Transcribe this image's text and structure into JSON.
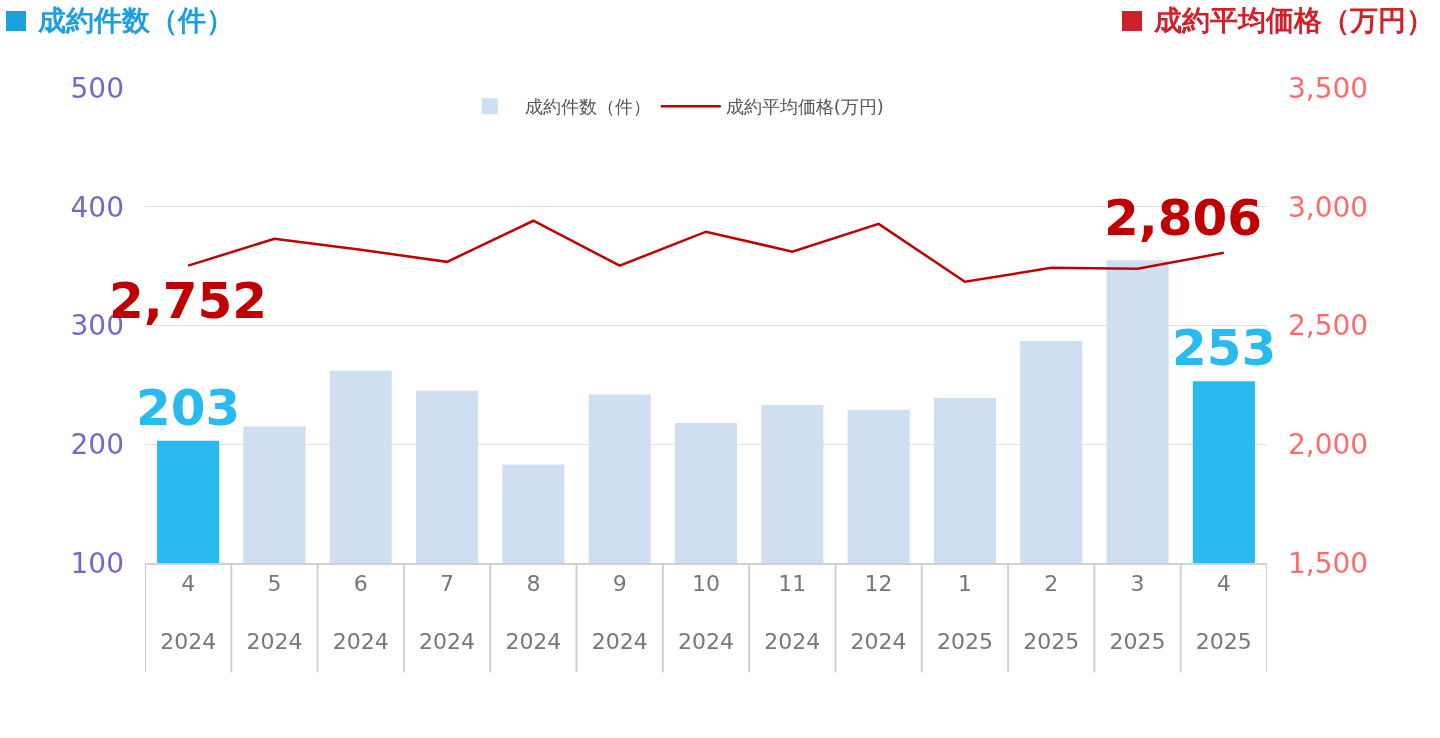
{
  "chart_data": {
    "type": "bar",
    "ylabel": "成約件数（件）",
    "y2label": "成約平均価格（万円）",
    "categories": [
      "4\n2024",
      "5\n2024",
      "6\n2024",
      "7\n2024",
      "8\n2024",
      "9\n2024",
      "10\n2024",
      "11\n2024",
      "12\n2024",
      "1\n2025",
      "2\n2025",
      "3\n2025",
      "4\n2025"
    ],
    "series": [
      {
        "name": "成約件数（件）",
        "color": "#cfdff2",
        "colors": [
          "#29bbef",
          "#cfdff2",
          "#cfdff2",
          "#cfdff2",
          "#cfdff2",
          "#cfdff2",
          "#cfdff2",
          "#cfdff2",
          "#cfdff2",
          "#cfdff2",
          "#cfdff2",
          "#cfdff2",
          "#29bbef"
        ],
        "values": [
          203,
          215,
          262,
          245,
          183,
          242,
          218,
          233,
          229,
          239,
          287,
          355,
          253
        ],
        "value_labels": [
          "203",
          null,
          null,
          null,
          null,
          null,
          null,
          null,
          null,
          null,
          null,
          null,
          "253"
        ]
      },
      {
        "name": "成約平均価格(万円)",
        "type": "line",
        "axis": "y2",
        "color": "#c00000",
        "values": [
          2752,
          2865,
          2819,
          2768,
          2941,
          2752,
          2895,
          2811,
          2928,
          2684,
          2743,
          2739,
          2806
        ],
        "value_labels": [
          "2,752",
          null,
          null,
          null,
          null,
          null,
          null,
          null,
          null,
          null,
          null,
          null,
          "2,806"
        ]
      }
    ],
    "ylim": [
      100,
      500
    ],
    "yticks": [
      100,
      200,
      300,
      400,
      500
    ],
    "y2lim": [
      1500,
      3500
    ],
    "y2ticks": [
      {
        "value": 1500,
        "label": "1,500"
      },
      {
        "value": 2000,
        "label": "2,000"
      },
      {
        "value": 2500,
        "label": "2,500"
      },
      {
        "value": 3000,
        "label": "3,000"
      },
      {
        "value": 3500,
        "label": "3,500"
      }
    ],
    "grid": "y",
    "legend": "top",
    "marker": "none",
    "line_style": "solid"
  }
}
